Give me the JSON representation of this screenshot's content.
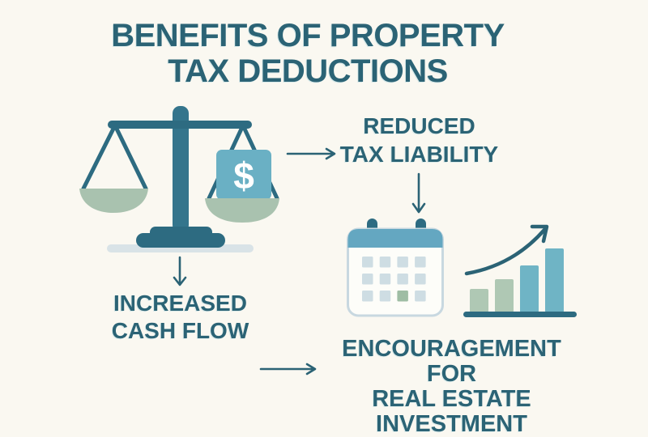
{
  "title": {
    "line1": "BENEFITS OF PROPERTY",
    "line2": "TAX DEDUCTIONS"
  },
  "benefits": {
    "reduced_tax_liability": {
      "line1": "REDUCED",
      "line2": "TAX LIABILITY"
    },
    "increased_cash_flow": {
      "line1": "INCREASED",
      "line2": "CASH FLOW"
    },
    "real_estate_encouragement": {
      "line1": "ENCOURAGEMENT FOR",
      "line2": "REAL ESTATE",
      "line3": "INVESTMENT"
    }
  },
  "scale": {
    "icon": "balance-scale-icon",
    "dollar_label": "$"
  },
  "calendar": {
    "icon": "calendar-icon",
    "rows": 3,
    "cols": 4,
    "highlight_index": 10
  },
  "chart_data": {
    "type": "bar",
    "title": "",
    "categories": [
      "bar1",
      "bar2",
      "bar3",
      "bar4"
    ],
    "values": [
      29,
      41,
      58,
      79
    ],
    "unit": "relative-height-px",
    "bar_colors": [
      "sage",
      "sage",
      "teal",
      "teal"
    ],
    "annotations": [
      "rising curved arrow above bars indicating growth"
    ],
    "xlabel": "",
    "ylabel": "",
    "grid": false,
    "legend": false
  },
  "colors": {
    "background": "#faf8f1",
    "textTeal": "#2b6375",
    "arrow": "#2b6375",
    "scaleDark": "#2d6b81",
    "pillar": "#34758c",
    "tagTeal": "#6ab0c4",
    "panSage": "#a9c2af",
    "shadow": "#d9e3e7",
    "calHeader": "#64a7c1",
    "calBody": "#fdfdf9",
    "calBorder": "#c8d8e0",
    "calCell": "#cedde3",
    "calCellHl": "#9fbda4",
    "barSage": "#afc8b4",
    "barTeal": "#6fb4c5",
    "dollarWhite": "#ffffff"
  }
}
